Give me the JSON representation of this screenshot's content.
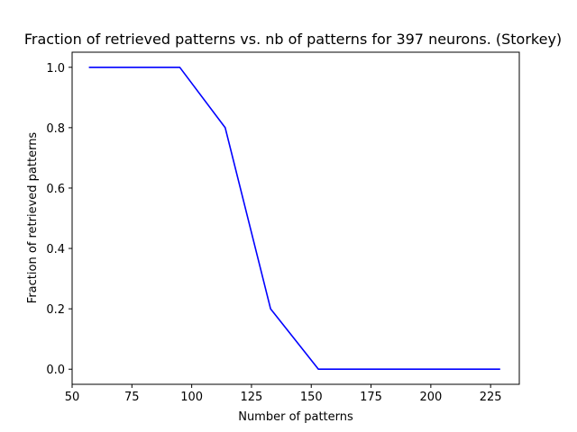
{
  "chart_data": {
    "type": "line",
    "title": "Fraction of retrieved patterns vs. nb of patterns for 397 neurons. (Storkey)",
    "xlabel": "Number of patterns",
    "ylabel": "Fraction of retrieved patterns",
    "xlim": [
      50,
      237
    ],
    "ylim": [
      -0.05,
      1.05
    ],
    "xticks": [
      50,
      75,
      100,
      125,
      150,
      175,
      200,
      225
    ],
    "xtick_labels": [
      "50",
      "75",
      "100",
      "125",
      "150",
      "175",
      "200",
      "225"
    ],
    "yticks": [
      0.0,
      0.2,
      0.4,
      0.6,
      0.8,
      1.0
    ],
    "ytick_labels": [
      "0.0",
      "0.2",
      "0.4",
      "0.6",
      "0.8",
      "1.0"
    ],
    "grid": false,
    "series": [
      {
        "color": "#0000ff",
        "x": [
          57,
          76,
          95,
          114,
          133,
          153,
          172,
          191,
          210,
          229
        ],
        "y": [
          1.0,
          1.0,
          1.0,
          0.8,
          0.2,
          0.0,
          0.0,
          0.0,
          0.0,
          0.0
        ]
      }
    ]
  }
}
